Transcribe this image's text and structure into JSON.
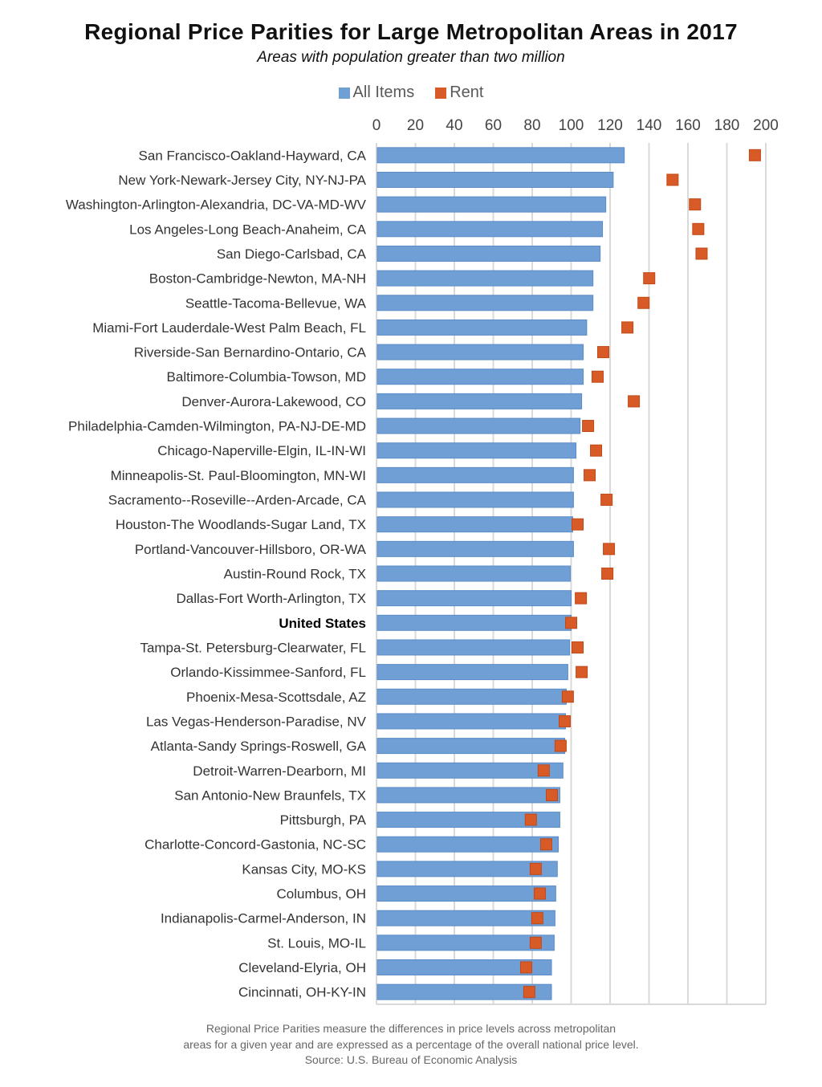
{
  "chart_data": {
    "type": "bar",
    "orientation": "horizontal",
    "title": "Regional Price Parities for Large Metropolitan Areas in 2017",
    "subtitle": "Areas with population greater than two million",
    "xlim": [
      0,
      200
    ],
    "xticks": [
      0,
      20,
      40,
      60,
      80,
      100,
      120,
      140,
      160,
      180,
      200
    ],
    "grid": true,
    "legend_position": "top",
    "categories": [
      "San Francisco-Oakland-Hayward, CA",
      "New York-Newark-Jersey City, NY-NJ-PA",
      "Washington-Arlington-Alexandria, DC-VA-MD-WV",
      "Los Angeles-Long Beach-Anaheim, CA",
      "San Diego-Carlsbad, CA",
      "Boston-Cambridge-Newton, MA-NH",
      "Seattle-Tacoma-Bellevue, WA",
      "Miami-Fort Lauderdale-West Palm Beach, FL",
      "Riverside-San Bernardino-Ontario, CA",
      "Baltimore-Columbia-Towson, MD",
      "Denver-Aurora-Lakewood, CO",
      "Philadelphia-Camden-Wilmington, PA-NJ-DE-MD",
      "Chicago-Naperville-Elgin, IL-IN-WI",
      "Minneapolis-St. Paul-Bloomington, MN-WI",
      "Sacramento--Roseville--Arden-Arcade, CA",
      "Houston-The Woodlands-Sugar Land, TX",
      "Portland-Vancouver-Hillsboro, OR-WA",
      "Austin-Round Rock, TX",
      "Dallas-Fort Worth-Arlington, TX",
      "United States",
      "Tampa-St. Petersburg-Clearwater, FL",
      "Orlando-Kissimmee-Sanford, FL",
      "Phoenix-Mesa-Scottsdale, AZ",
      "Las Vegas-Henderson-Paradise, NV",
      "Atlanta-Sandy Springs-Roswell, GA",
      "Detroit-Warren-Dearborn, MI",
      "San Antonio-New Braunfels, TX",
      "Pittsburgh, PA",
      "Charlotte-Concord-Gastonia, NC-SC",
      "Kansas City, MO-KS",
      "Columbus, OH",
      "Indianapolis-Carmel-Anderson, IN",
      "St. Louis, MO-IL",
      "Cleveland-Elyria, OH",
      "Cincinnati, OH-KY-IN"
    ],
    "highlight_category": "United States",
    "series": [
      {
        "name": "All Items",
        "color": "#6f9fd4",
        "mark": "bar",
        "values": [
          127.3,
          121.6,
          117.8,
          116.1,
          114.9,
          111.2,
          111.2,
          108.0,
          106.2,
          106.2,
          105.4,
          104.6,
          102.5,
          101.2,
          101.2,
          100.8,
          101.2,
          99.6,
          100.0,
          100.0,
          99.2,
          98.3,
          97.5,
          97.1,
          96.7,
          95.8,
          94.2,
          94.2,
          93.4,
          92.9,
          92.1,
          91.7,
          91.3,
          89.9,
          89.9
        ]
      },
      {
        "name": "Rent",
        "color": "#d85b27",
        "mark": "square",
        "values": [
          194.4,
          152.1,
          163.6,
          165.3,
          167.0,
          140.1,
          137.2,
          128.9,
          116.5,
          113.6,
          132.2,
          108.7,
          112.8,
          109.5,
          118.2,
          103.3,
          119.4,
          118.6,
          105.0,
          100.0,
          103.3,
          105.4,
          98.3,
          96.7,
          94.6,
          85.9,
          90.1,
          79.3,
          87.2,
          81.8,
          83.9,
          82.6,
          81.8,
          76.9,
          78.5
        ]
      }
    ],
    "footnote": [
      "Regional Price Parities measure the differences in price levels across metropolitan",
      "areas for a given year and are expressed as a percentage of the overall national price level.",
      "Source: U.S. Bureau of Economic Analysis"
    ]
  }
}
